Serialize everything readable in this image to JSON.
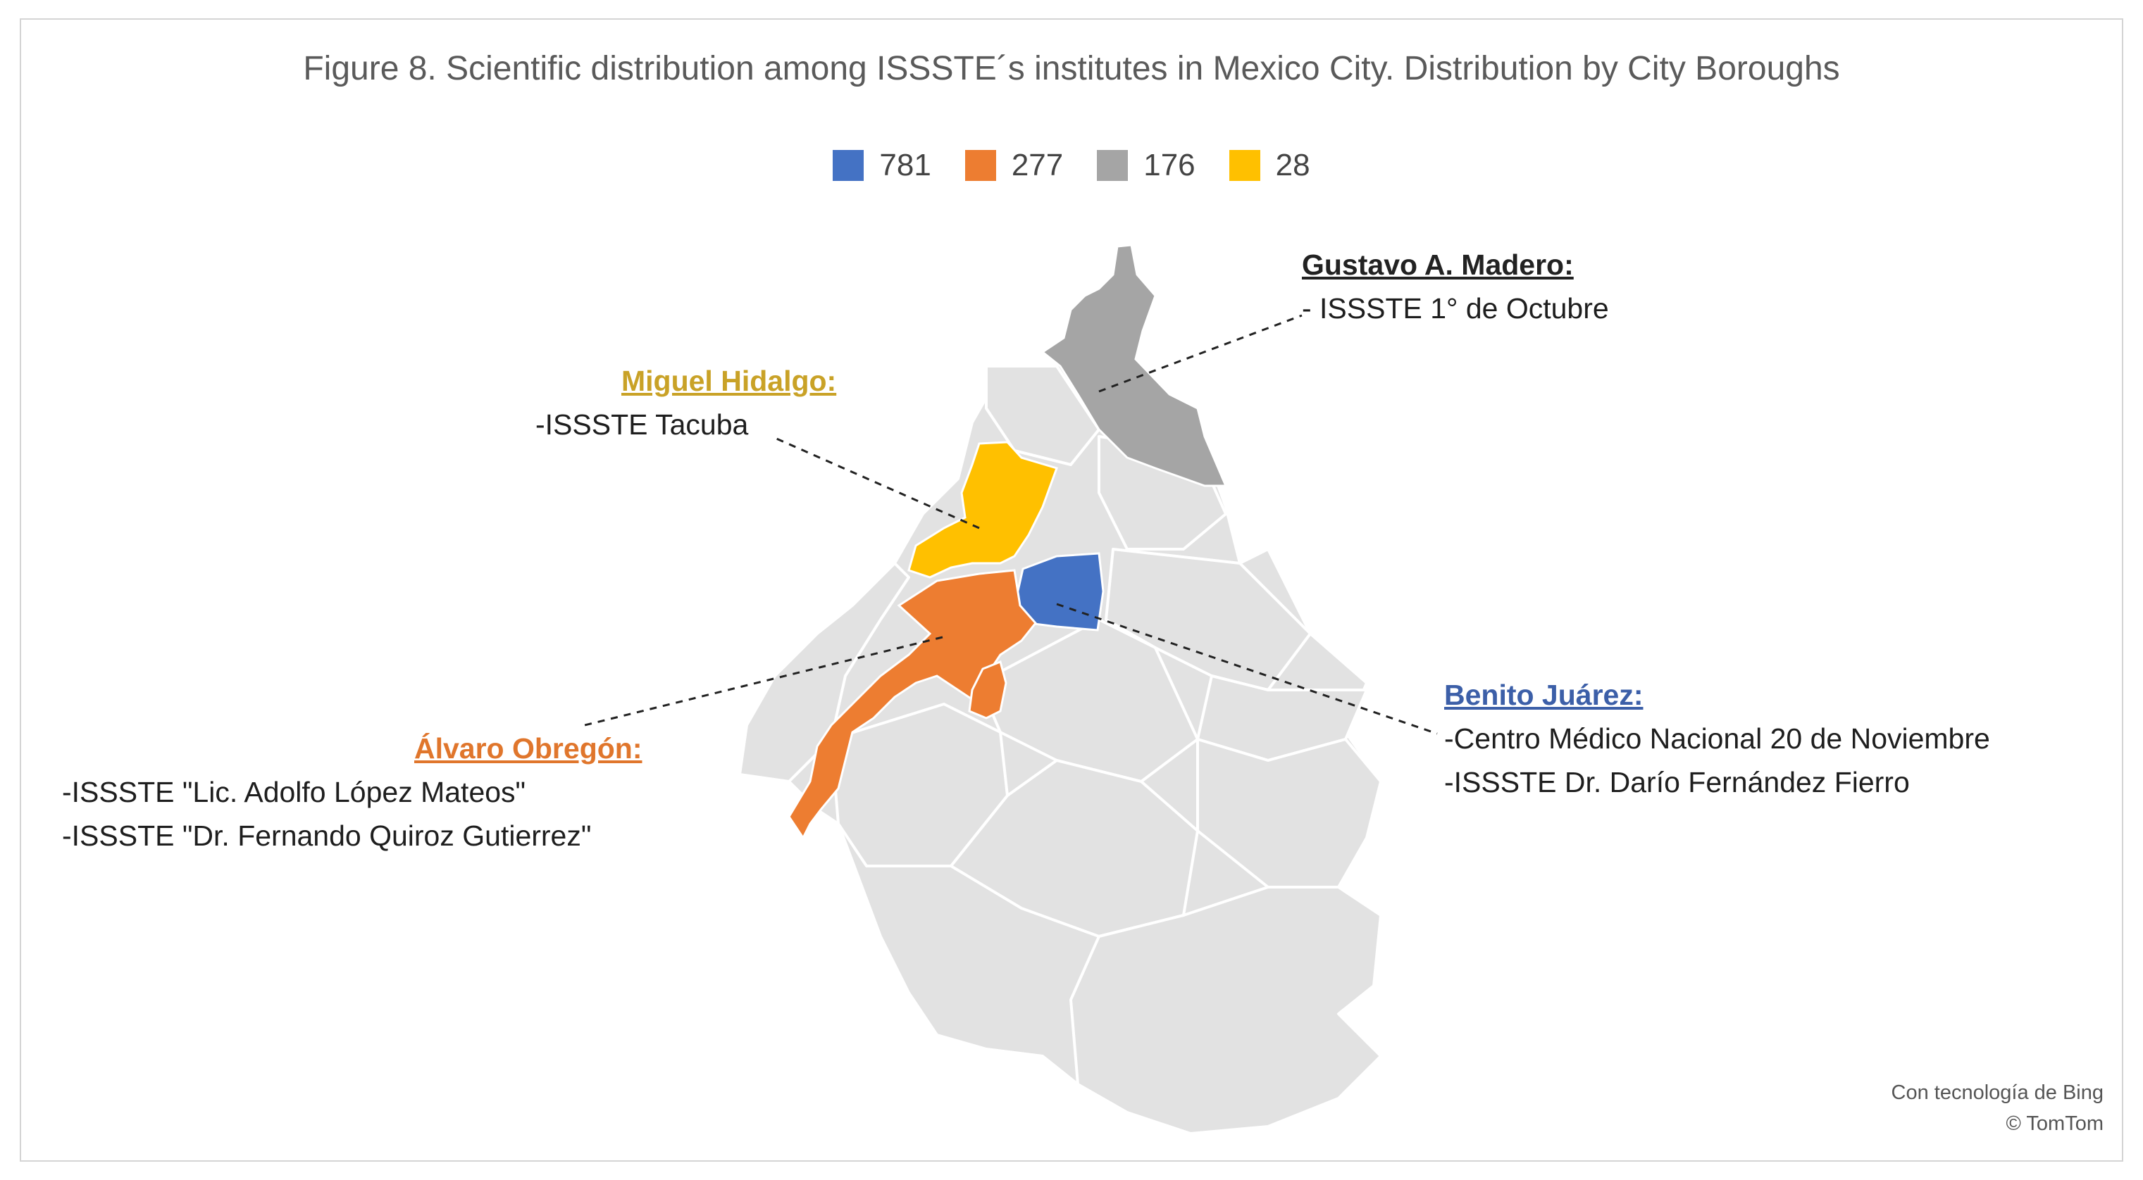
{
  "title": "Figure 8. Scientific distribution among ISSSTE´s institutes in Mexico City. Distribution by City Boroughs",
  "legend": [
    {
      "label": "781",
      "color": "#4472c4"
    },
    {
      "label": "277",
      "color": "#ed7d31"
    },
    {
      "label": "176",
      "color": "#a5a5a5"
    },
    {
      "label": "28",
      "color": "#ffc000"
    }
  ],
  "regions": {
    "gustavo_madero": {
      "name": "Gustavo A. Madero:",
      "lines": [
        "- ISSSTE 1° de Octubre"
      ],
      "color": "#a5a5a5",
      "name_color": "#222222"
    },
    "miguel_hidalgo": {
      "name": "Miguel Hidalgo:",
      "lines": [
        "-ISSSTE Tacuba"
      ],
      "color": "#ffc000",
      "name_color": "#c9a227"
    },
    "alvaro_obregon": {
      "name": "Álvaro Obregón:",
      "lines": [
        "-ISSSTE \"Lic. Adolfo López Mateos\"",
        "-ISSSTE \"Dr. Fernando Quiroz Gutierrez\""
      ],
      "color": "#ed7d31",
      "name_color": "#e0762c"
    },
    "benito_juarez": {
      "name": "Benito Juárez:",
      "lines": [
        "-Centro Médico Nacional 20 de Noviembre",
        "-ISSSTE Dr. Darío Fernández Fierro"
      ],
      "color": "#4472c4",
      "name_color": "#3c5fa8"
    }
  },
  "base_color": "#e2e2e2",
  "credit": {
    "line1": "Con tecnología de Bing",
    "line2": "© TomTom"
  }
}
